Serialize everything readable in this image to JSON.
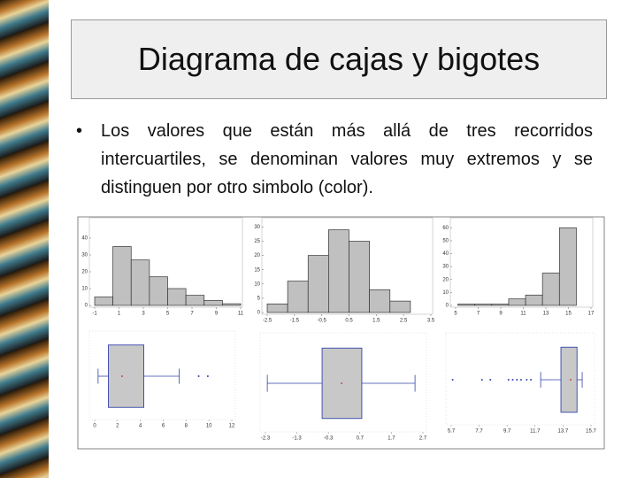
{
  "title": "Diagrama de cajas y bigotes",
  "bullet": "Los valores que están más allá de tres recorridos intercuartiles, se denominan valores muy extremos y se distinguen por otro simbolo (color).",
  "chart_data": [
    {
      "type": "histogram",
      "bins": [
        -1,
        0.5,
        2,
        3.5,
        5,
        6.5,
        8,
        9.5,
        11
      ],
      "values": [
        5,
        35,
        27,
        17,
        10,
        6,
        3,
        1
      ],
      "color": "#c0c0c0",
      "xlim": [
        -1,
        11
      ],
      "xticks": [
        -1,
        1,
        3,
        5,
        7,
        9,
        11
      ],
      "ylim": [
        0,
        50
      ],
      "yticks": [
        0,
        10,
        20,
        30,
        40
      ]
    },
    {
      "type": "histogram",
      "bins": [
        -2.5,
        -1.75,
        -1,
        -0.25,
        0.5,
        1.25,
        2,
        2.75
      ],
      "values": [
        3,
        11,
        20,
        29,
        25,
        8,
        4
      ],
      "color": "#c0c0c0",
      "xlim": [
        -2.5,
        3.5
      ],
      "xticks": [
        -2.5,
        -1.5,
        -0.5,
        0.5,
        1.5,
        2.5,
        3.5
      ],
      "ylim": [
        0,
        32
      ],
      "yticks": [
        0,
        5,
        10,
        15,
        20,
        25,
        30
      ]
    },
    {
      "type": "histogram",
      "bins": [
        5.2,
        6.7,
        8.2,
        9.7,
        11.2,
        12.7,
        14.2,
        15.7
      ],
      "values": [
        1,
        1,
        1,
        5,
        8,
        25,
        60
      ],
      "color": "#c0c0c0",
      "xlim": [
        5,
        17
      ],
      "xticks": [
        5,
        7,
        9,
        11,
        13,
        15,
        17
      ],
      "ylim": [
        0,
        65
      ],
      "yticks": [
        0,
        10,
        20,
        30,
        40,
        50,
        60
      ]
    },
    {
      "type": "box",
      "min": 0.3,
      "q1": 1.2,
      "median": 2.4,
      "q3": 4.3,
      "max": 7.4,
      "outliers": [
        9.1,
        9.9
      ],
      "color": "#c8c8c8",
      "xlim": [
        0,
        12
      ],
      "xticks": [
        0,
        2,
        4,
        6,
        8,
        10,
        12
      ]
    },
    {
      "type": "box",
      "min": -2.24,
      "q1": -0.5,
      "median": 0.12,
      "q3": 0.76,
      "max": 2.45,
      "outliers": [],
      "color": "#c8c8c8",
      "xlim": [
        -2.3,
        2.7
      ],
      "xticks": [
        -2.3,
        -1.3,
        -0.3,
        0.7,
        1.7,
        2.7
      ]
    },
    {
      "type": "box",
      "min": 12.1,
      "q1": 13.55,
      "median": 14.24,
      "q3": 14.7,
      "max": 15.07,
      "outliers": [
        5.8,
        7.9,
        8.5,
        9.8,
        10.1,
        10.4,
        10.7,
        11.1,
        11.4
      ],
      "color": "#c8c8c8",
      "xlim": [
        5.7,
        15.7
      ],
      "xticks": [
        5.7,
        7.7,
        9.7,
        11.7,
        13.7,
        15.7
      ]
    }
  ]
}
